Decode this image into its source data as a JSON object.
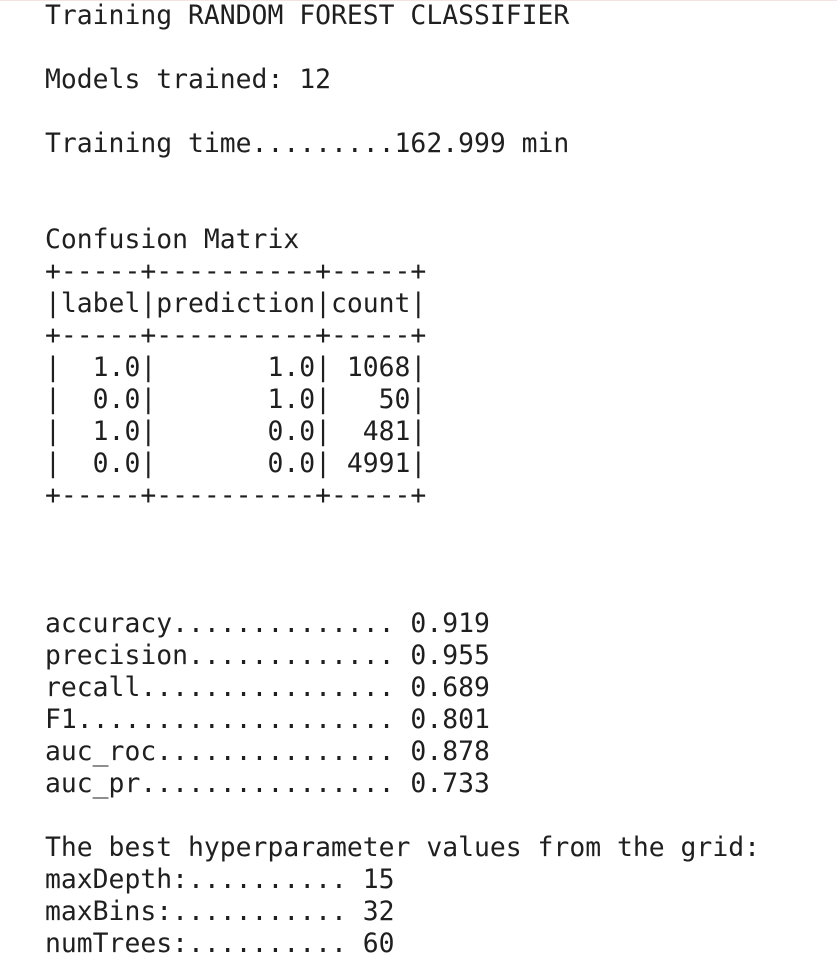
{
  "training_header": "Training RANDOM FOREST CLASSIFIER",
  "models_trained": "Models trained: 12",
  "training_time": "Training time.........162.999 min",
  "confusion_title": "Confusion Matrix",
  "confusion_table": {
    "border": "+-----+----------+-----+",
    "header": "|label|prediction|count|",
    "rows": [
      "|  1.0|       1.0| 1068|",
      "|  0.0|       1.0|   50|",
      "|  1.0|       0.0|  481|",
      "|  0.0|       0.0| 4991|"
    ]
  },
  "metrics": [
    "accuracy.............. 0.919",
    "precision............. 0.955",
    "recall................ 0.689",
    "F1.................... 0.801",
    "auc_roc............... 0.878",
    "auc_pr................ 0.733"
  ],
  "best_params_title": "The best hyperparameter values from the grid:",
  "best_params": [
    "maxDepth:.......... 15",
    "maxBins:........... 32",
    "numTrees:.......... 60"
  ]
}
